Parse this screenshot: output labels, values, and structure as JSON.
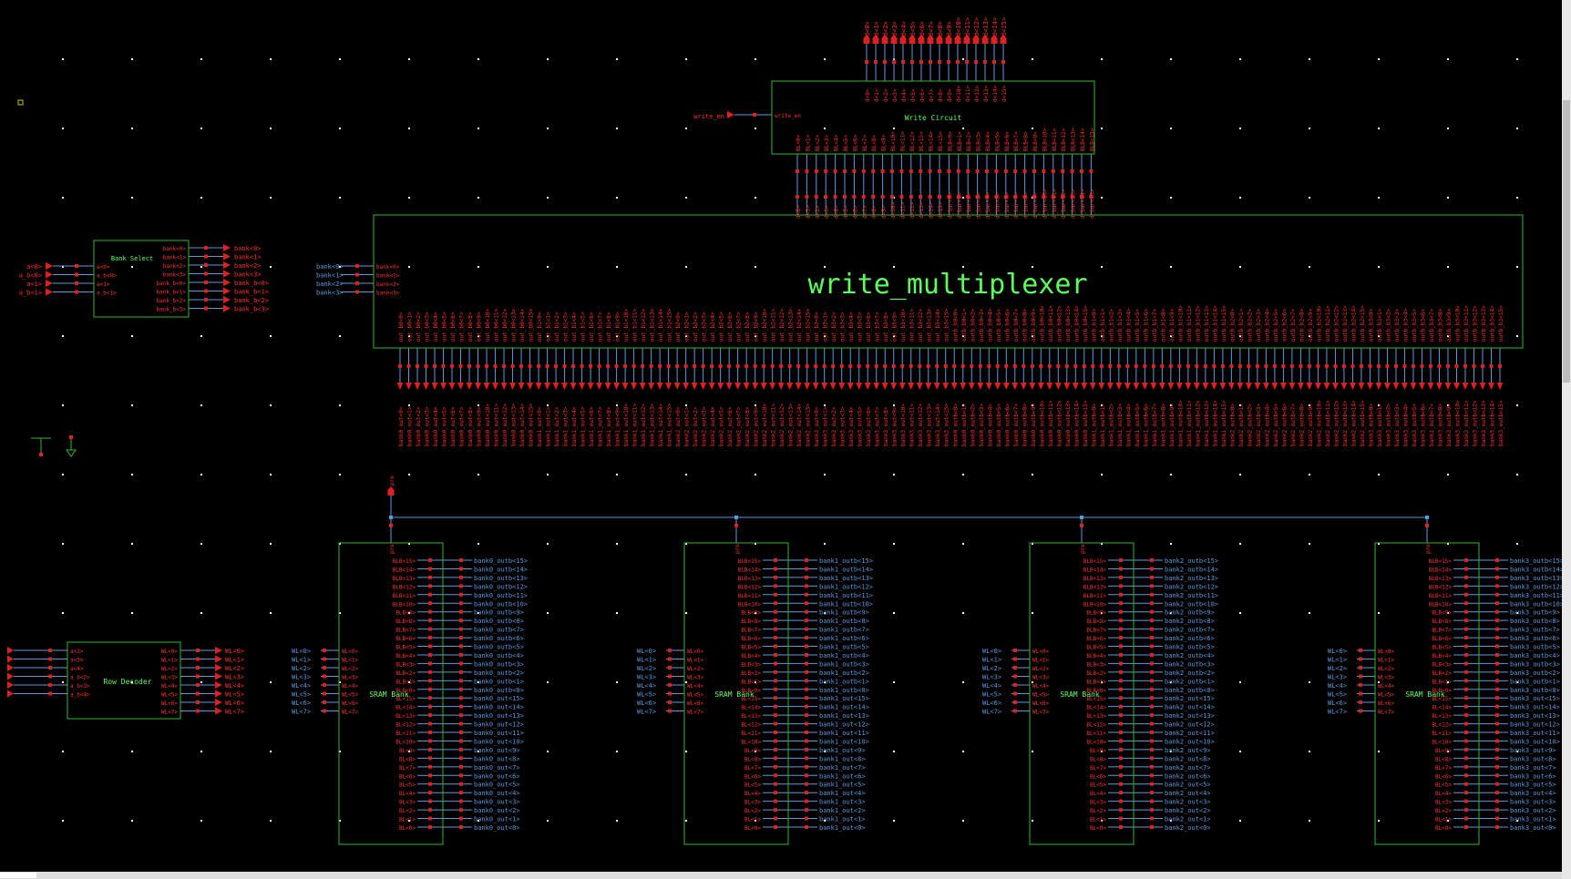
{
  "colors": {
    "background": "#000000",
    "box": "#2eb82e",
    "box_text": "#5cff5c",
    "wire": "#5a9be0",
    "pin": "#e02020",
    "pin_text": "#ff3030",
    "dots": "#ffffff",
    "select": "#c8c800"
  },
  "write_circuit": {
    "title": "Write Circuit",
    "in_pin": "write_en",
    "in_label": "write_en",
    "d_pins": [
      "d<0>",
      "d<1>",
      "d<2>",
      "d<3>",
      "d<4>",
      "d<5>",
      "d<6>",
      "d<7>",
      "d<8>",
      "d<9>",
      "d<10>",
      "d<11>",
      "d<12>",
      "d<13>",
      "d<14>",
      "d<15>"
    ],
    "bl_pins": [
      "BL<0>",
      "BL<1>",
      "BL<2>",
      "BL<3>",
      "BL<4>",
      "BL<5>",
      "BL<6>",
      "BL<7>",
      "BL<8>",
      "BL<9>",
      "BL<10>",
      "BL<11>",
      "BL<12>",
      "BL<13>",
      "BL<14>",
      "BL<15>",
      "BLB<0>",
      "BLB<1>",
      "BLB<2>",
      "BLB<3>",
      "BLB<4>",
      "BLB<5>",
      "BLB<6>",
      "BLB<7>",
      "BLB<8>",
      "BLB<9>",
      "BLB<10>",
      "BLB<11>",
      "BLB<12>",
      "BLB<13>",
      "BLB<14>",
      "BLB<15>"
    ]
  },
  "write_multiplexer": {
    "title": "write_multiplexer",
    "bank_nets": [
      "bank<0>",
      "bank<1>",
      "bank<2>",
      "bank<3>"
    ],
    "bank_pins": [
      "bank<0>",
      "bank<1>",
      "bank<2>",
      "bank<3>"
    ],
    "top_pins": [
      "d<0>",
      "d<1>",
      "d<2>",
      "d<3>",
      "d<4>",
      "d<5>",
      "d<6>",
      "d<7>",
      "d<8>",
      "d<9>",
      "d<10>",
      "d<11>",
      "d<12>",
      "d<13>",
      "d<14>",
      "d<15>",
      "d_bar<0>",
      "d_bar<1>",
      "d_bar<2>",
      "d_bar<3>",
      "d_bar<4>",
      "d_bar<5>",
      "d_bar<6>",
      "d_bar<7>",
      "d_bar<8>",
      "d_bar<9>",
      "d_bar<10>",
      "d_bar<11>",
      "d_bar<12>",
      "d_bar<13>",
      "d_bar<14>",
      "d_bar<15>"
    ],
    "out_pins": [
      "out_b0<0>",
      "out_b0<1>",
      "out_b0<2>",
      "out_b0<3>",
      "out_b0<4>",
      "out_b0<5>",
      "out_b0<6>",
      "out_b0<7>",
      "out_b0<8>",
      "out_b0<9>",
      "out_b0<10>",
      "out_b0<11>",
      "out_b0<12>",
      "out_b0<13>",
      "out_b0<14>",
      "out_b0<15>",
      "out_b1<0>",
      "out_b1<1>",
      "out_b1<2>",
      "out_b1<3>",
      "out_b1<4>",
      "out_b1<5>",
      "out_b1<6>",
      "out_b1<7>",
      "out_b1<8>",
      "out_b1<9>",
      "out_b1<10>",
      "out_b1<11>",
      "out_b1<12>",
      "out_b1<13>",
      "out_b1<14>",
      "out_b1<15>",
      "out_b2<0>",
      "out_b2<1>",
      "out_b2<2>",
      "out_b2<3>",
      "out_b2<4>",
      "out_b2<5>",
      "out_b2<6>",
      "out_b2<7>",
      "out_b2<8>",
      "out_b2<9>",
      "out_b2<10>",
      "out_b2<11>",
      "out_b2<12>",
      "out_b2<13>",
      "out_b2<14>",
      "out_b2<15>",
      "out_b3<0>",
      "out_b3<1>",
      "out_b3<2>",
      "out_b3<3>",
      "out_b3<4>",
      "out_b3<5>",
      "out_b3<6>",
      "out_b3<7>",
      "out_b3<8>",
      "out_b3<9>",
      "out_b3<10>",
      "out_b3<11>",
      "out_b3<12>",
      "out_b3<13>",
      "out_b3<14>",
      "out_b3<15>",
      "outb_b0<0>",
      "outb_b0<1>",
      "outb_b0<2>",
      "outb_b0<3>",
      "outb_b0<4>",
      "outb_b0<5>",
      "outb_b0<6>",
      "outb_b0<7>",
      "outb_b0<8>",
      "outb_b0<9>",
      "outb_b0<10>",
      "outb_b0<11>",
      "outb_b0<12>",
      "outb_b0<13>",
      "outb_b0<14>",
      "outb_b0<15>",
      "outb_b1<0>",
      "outb_b1<1>",
      "outb_b1<2>",
      "outb_b1<3>",
      "outb_b1<4>",
      "outb_b1<5>",
      "outb_b1<6>",
      "outb_b1<7>",
      "outb_b1<8>",
      "outb_b1<9>",
      "outb_b1<10>",
      "outb_b1<11>",
      "outb_b1<12>",
      "outb_b1<13>",
      "outb_b1<14>",
      "outb_b1<15>",
      "outb_b2<0>",
      "outb_b2<1>",
      "outb_b2<2>",
      "outb_b2<3>",
      "outb_b2<4>",
      "outb_b2<5>",
      "outb_b2<6>",
      "outb_b2<7>",
      "outb_b2<8>",
      "outb_b2<9>",
      "outb_b2<10>",
      "outb_b2<11>",
      "outb_b2<12>",
      "outb_b2<13>",
      "outb_b2<14>",
      "outb_b2<15>",
      "outb_b3<0>",
      "outb_b3<1>",
      "outb_b3<2>",
      "outb_b3<3>",
      "outb_b3<4>",
      "outb_b3<5>",
      "outb_b3<6>",
      "outb_b3<7>",
      "outb_b3<8>",
      "outb_b3<9>",
      "outb_b3<10>",
      "outb_b3<11>",
      "outb_b3<12>",
      "outb_b3<13>",
      "outb_b3<14>",
      "outb_b3<15>"
    ],
    "out_nets": [
      "bank0_out<0>",
      "bank0_out<1>",
      "bank0_out<2>",
      "bank0_out<3>",
      "bank0_out<4>",
      "bank0_out<5>",
      "bank0_out<6>",
      "bank0_out<7>",
      "bank0_out<8>",
      "bank0_out<9>",
      "bank0_out<10>",
      "bank0_out<11>",
      "bank0_out<12>",
      "bank0_out<13>",
      "bank0_out<14>",
      "bank0_out<15>",
      "bank1_out<0>",
      "bank1_out<1>",
      "bank1_out<2>",
      "bank1_out<3>",
      "bank1_out<4>",
      "bank1_out<5>",
      "bank1_out<6>",
      "bank1_out<7>",
      "bank1_out<8>",
      "bank1_out<9>",
      "bank1_out<10>",
      "bank1_out<11>",
      "bank1_out<12>",
      "bank1_out<13>",
      "bank1_out<14>",
      "bank1_out<15>",
      "bank2_out<0>",
      "bank2_out<1>",
      "bank2_out<2>",
      "bank2_out<3>",
      "bank2_out<4>",
      "bank2_out<5>",
      "bank2_out<6>",
      "bank2_out<7>",
      "bank2_out<8>",
      "bank2_out<9>",
      "bank2_out<10>",
      "bank2_out<11>",
      "bank2_out<12>",
      "bank2_out<13>",
      "bank2_out<14>",
      "bank2_out<15>",
      "bank3_out<0>",
      "bank3_out<1>",
      "bank3_out<2>",
      "bank3_out<3>",
      "bank3_out<4>",
      "bank3_out<5>",
      "bank3_out<6>",
      "bank3_out<7>",
      "bank3_out<8>",
      "bank3_out<9>",
      "bank3_out<10>",
      "bank3_out<11>",
      "bank3_out<12>",
      "bank3_out<13>",
      "bank3_out<14>",
      "bank3_out<15>",
      "bank0_outb<0>",
      "bank0_outb<1>",
      "bank0_outb<2>",
      "bank0_outb<3>",
      "bank0_outb<4>",
      "bank0_outb<5>",
      "bank0_outb<6>",
      "bank0_outb<7>",
      "bank0_outb<8>",
      "bank0_outb<9>",
      "bank0_outb<10>",
      "bank0_outb<11>",
      "bank0_outb<12>",
      "bank0_outb<13>",
      "bank0_outb<14>",
      "bank0_outb<15>",
      "bank1_outb<0>",
      "bank1_outb<1>",
      "bank1_outb<2>",
      "bank1_outb<3>",
      "bank1_outb<4>",
      "bank1_outb<5>",
      "bank1_outb<6>",
      "bank1_outb<7>",
      "bank1_outb<8>",
      "bank1_outb<9>",
      "bank1_outb<10>",
      "bank1_outb<11>",
      "bank1_outb<12>",
      "bank1_outb<13>",
      "bank1_outb<14>",
      "bank1_outb<15>",
      "bank2_outb<0>",
      "bank2_outb<1>",
      "bank2_outb<2>",
      "bank2_outb<3>",
      "bank2_outb<4>",
      "bank2_outb<5>",
      "bank2_outb<6>",
      "bank2_outb<7>",
      "bank2_outb<8>",
      "bank2_outb<9>",
      "bank2_outb<10>",
      "bank2_outb<11>",
      "bank2_outb<12>",
      "bank2_outb<13>",
      "bank2_outb<14>",
      "bank2_outb<15>",
      "bank3_outb<0>",
      "bank3_outb<1>",
      "bank3_outb<2>",
      "bank3_outb<3>",
      "bank3_outb<4>",
      "bank3_outb<5>",
      "bank3_outb<6>",
      "bank3_outb<7>",
      "bank3_outb<8>",
      "bank3_outb<9>",
      "bank3_outb<10>",
      "bank3_outb<11>",
      "bank3_outb<12>",
      "bank3_outb<13>",
      "bank3_outb<14>",
      "bank3_outb<15>"
    ]
  },
  "bank_select": {
    "title": "Bank Select",
    "in_nets": [
      "a<0>",
      "a_b<0>",
      "a<1>",
      "a_b<1>"
    ],
    "in_pins": [
      "a<0>",
      "a_b<0>",
      "a<1>",
      "a_b<1>"
    ],
    "out_pins": [
      "bank<0>",
      "bank<1>",
      "bank<2>",
      "bank<3>",
      "bank_b<0>",
      "bank_b<1>",
      "bank_b<2>",
      "bank_b<3>"
    ],
    "out_nets": [
      "bank<0>",
      "bank<1>",
      "bank<2>",
      "bank<3>",
      "bank_b<0>",
      "bank_b<1>",
      "bank_b<2>",
      "bank_b<3>"
    ]
  },
  "row_decoder": {
    "title": "Row Decoder",
    "in_pins": [
      "a<2>",
      "a<3>",
      "a<4>",
      "a_b<2>",
      "a_b<3>",
      "a_b<4>"
    ],
    "out_pins": [
      "WL<0>",
      "WL<1>",
      "WL<2>",
      "WL<3>",
      "WL<4>",
      "WL<5>",
      "WL<6>",
      "WL<7>"
    ],
    "out_nets": [
      "WL<0>",
      "WL<1>",
      "WL<2>",
      "WL<3>",
      "WL<4>",
      "WL<5>",
      "WL<6>",
      "WL<7>"
    ]
  },
  "precharge_net": "pre",
  "sram_banks": [
    {
      "title": "SRAM Bank",
      "pre_label": "pre",
      "wl_nets": [
        "WL<0>",
        "WL<1>",
        "WL<2>",
        "WL<3>",
        "WL<4>",
        "WL<5>",
        "WL<6>",
        "WL<7>"
      ],
      "wl_pins": [
        "WL<0>",
        "WL<1>",
        "WL<2>",
        "WL<3>",
        "WL<4>",
        "WL<5>",
        "WL<6>",
        "WL<7>"
      ],
      "bl_pins": [
        "BLB<15>",
        "BLB<14>",
        "BLB<13>",
        "BLB<12>",
        "BLB<11>",
        "BLB<10>",
        "BLB<9>",
        "BLB<8>",
        "BLB<7>",
        "BLB<6>",
        "BLB<5>",
        "BLB<4>",
        "BLB<3>",
        "BLB<2>",
        "BLB<1>",
        "BLB<0>",
        "BL<15>",
        "BL<14>",
        "BL<13>",
        "BL<12>",
        "BL<11>",
        "BL<10>",
        "BL<9>",
        "BL<8>",
        "BL<7>",
        "BL<6>",
        "BL<5>",
        "BL<4>",
        "BL<3>",
        "BL<2>",
        "BL<1>",
        "BL<0>"
      ],
      "bl_nets": [
        "bank0_outb<15>",
        "bank0_outb<14>",
        "bank0_outb<13>",
        "bank0_outb<12>",
        "bank0_outb<11>",
        "bank0_outb<10>",
        "bank0_outb<9>",
        "bank0_outb<8>",
        "bank0_outb<7>",
        "bank0_outb<6>",
        "bank0_outb<5>",
        "bank0_outb<4>",
        "bank0_outb<3>",
        "bank0_outb<2>",
        "bank0_outb<1>",
        "bank0_outb<0>",
        "bank0_out<15>",
        "bank0_out<14>",
        "bank0_out<13>",
        "bank0_out<12>",
        "bank0_out<11>",
        "bank0_out<10>",
        "bank0_out<9>",
        "bank0_out<8>",
        "bank0_out<7>",
        "bank0_out<6>",
        "bank0_out<5>",
        "bank0_out<4>",
        "bank0_out<3>",
        "bank0_out<2>",
        "bank0_out<1>",
        "bank0_out<0>"
      ]
    },
    {
      "title": "SRAM Bank",
      "pre_label": "pre",
      "wl_nets": [
        "WL<0>",
        "WL<1>",
        "WL<2>",
        "WL<3>",
        "WL<4>",
        "WL<5>",
        "WL<6>",
        "WL<7>"
      ],
      "wl_pins": [
        "WL<0>",
        "WL<1>",
        "WL<2>",
        "WL<3>",
        "WL<4>",
        "WL<5>",
        "WL<6>",
        "WL<7>"
      ],
      "bl_pins": [
        "BLB<15>",
        "BLB<14>",
        "BLB<13>",
        "BLB<12>",
        "BLB<11>",
        "BLB<10>",
        "BLB<9>",
        "BLB<8>",
        "BLB<7>",
        "BLB<6>",
        "BLB<5>",
        "BLB<4>",
        "BLB<3>",
        "BLB<2>",
        "BLB<1>",
        "BLB<0>",
        "BL<15>",
        "BL<14>",
        "BL<13>",
        "BL<12>",
        "BL<11>",
        "BL<10>",
        "BL<9>",
        "BL<8>",
        "BL<7>",
        "BL<6>",
        "BL<5>",
        "BL<4>",
        "BL<3>",
        "BL<2>",
        "BL<1>",
        "BL<0>"
      ],
      "bl_nets": [
        "bank1_outb<15>",
        "bank1_outb<14>",
        "bank1_outb<13>",
        "bank1_outb<12>",
        "bank1_outb<11>",
        "bank1_outb<10>",
        "bank1_outb<9>",
        "bank1_outb<8>",
        "bank1_outb<7>",
        "bank1_outb<6>",
        "bank1_outb<5>",
        "bank1_outb<4>",
        "bank1_outb<3>",
        "bank1_outb<2>",
        "bank1_outb<1>",
        "bank1_outb<0>",
        "bank1_out<15>",
        "bank1_out<14>",
        "bank1_out<13>",
        "bank1_out<12>",
        "bank1_out<11>",
        "bank1_out<10>",
        "bank1_out<9>",
        "bank1_out<8>",
        "bank1_out<7>",
        "bank1_out<6>",
        "bank1_out<5>",
        "bank1_out<4>",
        "bank1_out<3>",
        "bank1_out<2>",
        "bank1_out<1>",
        "bank1_out<0>"
      ]
    },
    {
      "title": "SRAM Bank",
      "pre_label": "pre",
      "wl_nets": [
        "WL<0>",
        "WL<1>",
        "WL<2>",
        "WL<3>",
        "WL<4>",
        "WL<5>",
        "WL<6>",
        "WL<7>"
      ],
      "wl_pins": [
        "WL<0>",
        "WL<1>",
        "WL<2>",
        "WL<3>",
        "WL<4>",
        "WL<5>",
        "WL<6>",
        "WL<7>"
      ],
      "bl_pins": [
        "BLB<15>",
        "BLB<14>",
        "BLB<13>",
        "BLB<12>",
        "BLB<11>",
        "BLB<10>",
        "BLB<9>",
        "BLB<8>",
        "BLB<7>",
        "BLB<6>",
        "BLB<5>",
        "BLB<4>",
        "BLB<3>",
        "BLB<2>",
        "BLB<1>",
        "BLB<0>",
        "BL<15>",
        "BL<14>",
        "BL<13>",
        "BL<12>",
        "BL<11>",
        "BL<10>",
        "BL<9>",
        "BL<8>",
        "BL<7>",
        "BL<6>",
        "BL<5>",
        "BL<4>",
        "BL<3>",
        "BL<2>",
        "BL<1>",
        "BL<0>"
      ],
      "bl_nets": [
        "bank2_outb<15>",
        "bank2_outb<14>",
        "bank2_outb<13>",
        "bank2_outb<12>",
        "bank2_outb<11>",
        "bank2_outb<10>",
        "bank2_outb<9>",
        "bank2_outb<8>",
        "bank2_outb<7>",
        "bank2_outb<6>",
        "bank2_outb<5>",
        "bank2_outb<4>",
        "bank2_outb<3>",
        "bank2_outb<2>",
        "bank2_outb<1>",
        "bank2_outb<0>",
        "bank2_out<15>",
        "bank2_out<14>",
        "bank2_out<13>",
        "bank2_out<12>",
        "bank2_out<11>",
        "bank2_out<10>",
        "bank2_out<9>",
        "bank2_out<8>",
        "bank2_out<7>",
        "bank2_out<6>",
        "bank2_out<5>",
        "bank2_out<4>",
        "bank2_out<3>",
        "bank2_out<2>",
        "bank2_out<1>",
        "bank2_out<0>"
      ]
    },
    {
      "title": "SRAM Bank",
      "pre_label": "pre",
      "wl_nets": [
        "WL<0>",
        "WL<1>",
        "WL<2>",
        "WL<3>",
        "WL<4>",
        "WL<5>",
        "WL<6>",
        "WL<7>"
      ],
      "wl_pins": [
        "WL<0>",
        "WL<1>",
        "WL<2>",
        "WL<3>",
        "WL<4>",
        "WL<5>",
        "WL<6>",
        "WL<7>"
      ],
      "bl_pins": [
        "BLB<15>",
        "BLB<14>",
        "BLB<13>",
        "BLB<12>",
        "BLB<11>",
        "BLB<10>",
        "BLB<9>",
        "BLB<8>",
        "BLB<7>",
        "BLB<6>",
        "BLB<5>",
        "BLB<4>",
        "BLB<3>",
        "BLB<2>",
        "BLB<1>",
        "BLB<0>",
        "BL<15>",
        "BL<14>",
        "BL<13>",
        "BL<12>",
        "BL<11>",
        "BL<10>",
        "BL<9>",
        "BL<8>",
        "BL<7>",
        "BL<6>",
        "BL<5>",
        "BL<4>",
        "BL<3>",
        "BL<2>",
        "BL<1>",
        "BL<0>"
      ],
      "bl_nets": [
        "bank3_outb<15>",
        "bank3_outb<14>",
        "bank3_outb<13>",
        "bank3_outb<12>",
        "bank3_outb<11>",
        "bank3_outb<10>",
        "bank3_outb<9>",
        "bank3_outb<8>",
        "bank3_outb<7>",
        "bank3_outb<6>",
        "bank3_outb<5>",
        "bank3_outb<4>",
        "bank3_outb<3>",
        "bank3_outb<2>",
        "bank3_outb<1>",
        "bank3_outb<0>",
        "bank3_out<15>",
        "bank3_out<14>",
        "bank3_out<13>",
        "bank3_out<12>",
        "bank3_out<11>",
        "bank3_out<10>",
        "bank3_out<9>",
        "bank3_out<8>",
        "bank3_out<7>",
        "bank3_out<6>",
        "bank3_out<5>",
        "bank3_out<4>",
        "bank3_out<3>",
        "bank3_out<2>",
        "bank3_out<1>",
        "bank3_out<0>"
      ]
    }
  ],
  "symbols": [
    "vdd-icon",
    "gnd-icon"
  ]
}
